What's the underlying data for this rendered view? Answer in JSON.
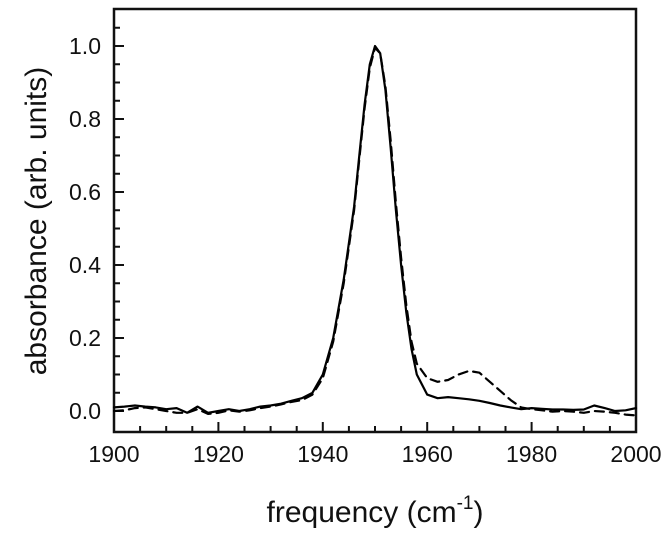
{
  "chart_data": {
    "type": "line",
    "title": "",
    "xlabel": "frequency (cm-1)",
    "xlabel_main": "frequency (cm",
    "xlabel_sup": "-1",
    "xlabel_close": ")",
    "ylabel": "absorbance (arb. units)",
    "xlim": [
      1900,
      2000
    ],
    "ylim": [
      -0.05,
      1.11
    ],
    "grid": false,
    "legend": null,
    "x_ticks": [
      1900,
      1920,
      1940,
      1960,
      1980,
      2000
    ],
    "x_tick_labels": [
      "1900",
      "1920",
      "1940",
      "1960",
      "1980",
      "2000"
    ],
    "y_ticks": [
      0.0,
      0.2,
      0.4,
      0.6,
      0.8,
      1.0
    ],
    "y_tick_labels": [
      "0.0",
      "0.2",
      "0.4",
      "0.6",
      "0.8",
      "1.0"
    ],
    "series": [
      {
        "name": "solid",
        "style": "solid",
        "color": "#000000",
        "x": [
          1900,
          1902,
          1904,
          1906,
          1908,
          1910,
          1912,
          1914,
          1916,
          1918,
          1920,
          1922,
          1924,
          1926,
          1928,
          1930,
          1932,
          1934,
          1936,
          1938,
          1940,
          1942,
          1944,
          1946,
          1947,
          1948,
          1949,
          1950,
          1951,
          1952,
          1953,
          1954,
          1955,
          1956,
          1957,
          1958,
          1960,
          1962,
          1964,
          1966,
          1968,
          1970,
          1972,
          1974,
          1976,
          1978,
          1980,
          1982,
          1984,
          1986,
          1988,
          1990,
          1992,
          1994,
          1996,
          1998,
          2000
        ],
        "y": [
          0.01,
          0.012,
          0.015,
          0.012,
          0.01,
          0.005,
          0.008,
          -0.005,
          0.012,
          -0.005,
          0.0,
          0.005,
          0.0,
          0.005,
          0.012,
          0.015,
          0.02,
          0.028,
          0.035,
          0.05,
          0.1,
          0.2,
          0.36,
          0.56,
          0.7,
          0.84,
          0.95,
          1.0,
          0.98,
          0.88,
          0.72,
          0.55,
          0.4,
          0.27,
          0.17,
          0.1,
          0.045,
          0.035,
          0.038,
          0.035,
          0.032,
          0.028,
          0.022,
          0.015,
          0.01,
          0.005,
          0.008,
          0.006,
          0.004,
          0.004,
          0.003,
          0.004,
          0.015,
          0.008,
          0.0,
          0.002,
          0.008
        ]
      },
      {
        "name": "dashed",
        "style": "dashed",
        "color": "#000000",
        "x": [
          1900,
          1902,
          1904,
          1906,
          1908,
          1910,
          1912,
          1914,
          1916,
          1918,
          1920,
          1922,
          1924,
          1926,
          1928,
          1930,
          1932,
          1934,
          1936,
          1938,
          1940,
          1942,
          1944,
          1946,
          1947,
          1948,
          1949,
          1950,
          1951,
          1952,
          1953,
          1954,
          1955,
          1956,
          1957,
          1958,
          1960,
          1962,
          1964,
          1966,
          1968,
          1970,
          1972,
          1974,
          1976,
          1978,
          1980,
          1982,
          1984,
          1986,
          1988,
          1990,
          1992,
          1994,
          1996,
          1998,
          2000
        ],
        "y": [
          0.0,
          0.002,
          0.008,
          0.01,
          0.005,
          0.0,
          -0.005,
          -0.005,
          0.005,
          -0.008,
          -0.005,
          0.002,
          -0.002,
          0.002,
          0.008,
          0.012,
          0.018,
          0.025,
          0.03,
          0.045,
          0.09,
          0.19,
          0.35,
          0.55,
          0.69,
          0.83,
          0.94,
          0.995,
          0.98,
          0.89,
          0.74,
          0.57,
          0.42,
          0.29,
          0.19,
          0.13,
          0.09,
          0.08,
          0.085,
          0.1,
          0.11,
          0.105,
          0.08,
          0.055,
          0.03,
          0.01,
          0.005,
          0.002,
          -0.002,
          0.0,
          -0.002,
          -0.005,
          0.0,
          -0.002,
          -0.005,
          -0.01,
          -0.012
        ]
      }
    ],
    "annotations": []
  }
}
